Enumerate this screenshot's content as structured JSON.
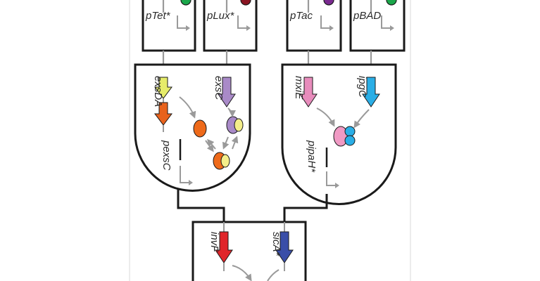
{
  "promoters": {
    "ptet": "pTet*",
    "plux": "pLux*",
    "ptac": "pTac",
    "pbad": "pBAD"
  },
  "genes": {
    "exsda": "exsDA",
    "exsc": "exsC",
    "mxie": "mxiE",
    "ipgc": "ipgC",
    "invf": "invF",
    "sica": "sicA*"
  },
  "output_promoters": {
    "pexsc": "pexsC",
    "pipah": "pipaH*"
  },
  "colors": {
    "stroke": "#1a1a1a",
    "wire": "#9a9a9a",
    "ptet_dot": "#1aa64a",
    "plux_dot": "#8a1522",
    "ptac_dot": "#7a2a90",
    "pbad_dot": "#1aa64a",
    "exsda_arrow_top": "#e6ec6a",
    "exsda_arrow_bottom": "#e8621c",
    "exsc_arrow": "#a98ac8",
    "mxie_arrow": "#e88cbc",
    "ipgc_arrow": "#2aaee6",
    "invf_arrow": "#e0252a",
    "sica_arrow": "#3a4ea8",
    "orange_protein": "#ee6a1a",
    "yellow_protein": "#f4ee8a",
    "purple_protein": "#a98ac8",
    "pink_protein": "#f09ac4",
    "blue_protein": "#2aaee6"
  }
}
